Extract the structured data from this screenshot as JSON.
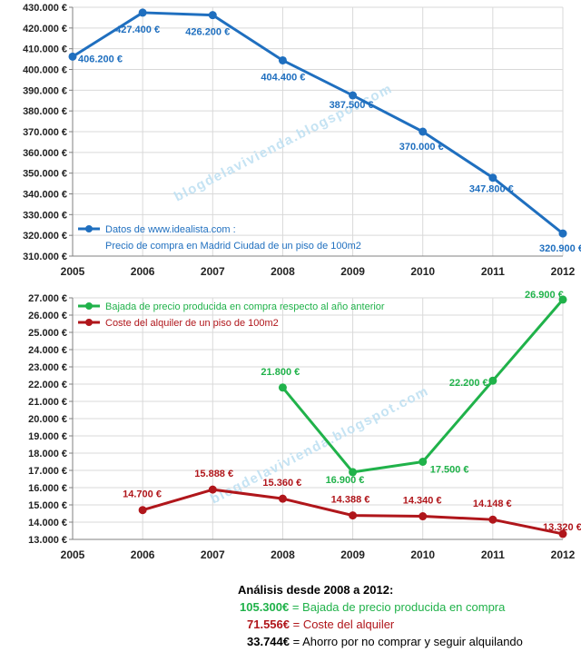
{
  "watermark": "blogdelavivienda.blogspot.com",
  "colors": {
    "price": "#1f6fbf",
    "drop": "#20b24a",
    "rent": "#b0161b",
    "grid": "#d9d9d9",
    "axis": "#808080"
  },
  "chart_data": [
    {
      "type": "line",
      "x": [
        "2005",
        "2006",
        "2007",
        "2008",
        "2009",
        "2010",
        "2011",
        "2012"
      ],
      "ylim": [
        310000,
        430000
      ],
      "ytick_step": 10000,
      "yticks": [
        "310.000 €",
        "320.000 €",
        "330.000 €",
        "340.000 €",
        "350.000 €",
        "360.000 €",
        "370.000 €",
        "380.000 €",
        "390.000 €",
        "400.000 €",
        "410.000 €",
        "420.000 €",
        "430.000 €"
      ],
      "grid": true,
      "legend_position": "bottom-left",
      "series": [
        {
          "name": "Datos de www.idealista.com :",
          "name_line2": "Precio de compra  en Madrid  Ciudad  de un piso de 100m2",
          "color": "#1f6fbf",
          "values": [
            406200,
            427400,
            426200,
            404400,
            387500,
            370000,
            347800,
            320900
          ],
          "labels": [
            "406.200 €",
            "427.400 €",
            "426.200 €",
            "404.400 €",
            "387.500 €",
            "370.000 €",
            "347.800 €",
            "320.900 €"
          ]
        }
      ]
    },
    {
      "type": "line",
      "x": [
        "2005",
        "2006",
        "2007",
        "2008",
        "2009",
        "2010",
        "2011",
        "2012"
      ],
      "ylim": [
        13000,
        27000
      ],
      "ytick_step": 1000,
      "yticks": [
        "13.000 €",
        "14.000 €",
        "15.000 €",
        "16.000 €",
        "17.000 €",
        "18.000 €",
        "19.000 €",
        "20.000 €",
        "21.000 €",
        "22.000 €",
        "23.000 €",
        "24.000 €",
        "25.000 €",
        "26.000 €",
        "27.000 €"
      ],
      "grid": true,
      "legend_position": "top-left",
      "series": [
        {
          "name": "Bajada de precio producida  en compra respecto al año anterior",
          "color": "#20b24a",
          "values": [
            null,
            null,
            null,
            21800,
            16900,
            17500,
            22200,
            26900
          ],
          "labels": [
            null,
            null,
            null,
            "21.800 €",
            "16.900 €",
            "17.500 €",
            "22.200 €",
            "26.900 €"
          ]
        },
        {
          "name": "Coste del alquiler de un piso de 100m2",
          "color": "#b0161b",
          "values": [
            null,
            14700,
            15888,
            15360,
            14388,
            14340,
            14148,
            13320
          ],
          "labels": [
            null,
            "14.700 €",
            "15.888 €",
            "15.360 €",
            "14.388 €",
            "14.340 €",
            "14.148 €",
            "13.320 €"
          ]
        }
      ]
    }
  ],
  "analysis": {
    "title": "Análisis desde 2008 a 2012:",
    "lines": [
      {
        "amount": "105.300€",
        "text": " = Bajada de precio producida en compra",
        "color": "#20b24a"
      },
      {
        "amount": "71.556€",
        "text": " = Coste del alquiler",
        "color": "#b0161b"
      },
      {
        "amount": "33.744€",
        "text": " = Ahorro por no comprar y seguir alquilando",
        "color": "#000000"
      }
    ]
  }
}
